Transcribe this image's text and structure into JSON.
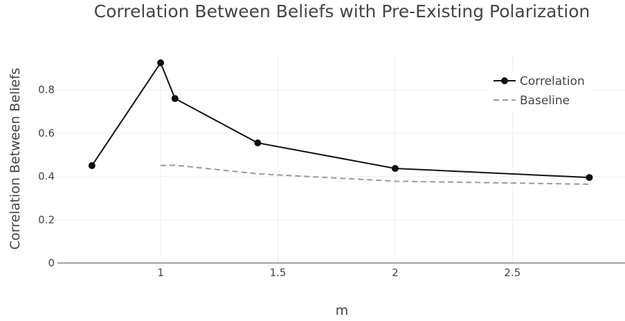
{
  "chart_data": {
    "type": "line",
    "title": "Correlation Between Beliefs with Pre-Existing Polarization",
    "xlabel": "m",
    "ylabel": "Correlation Between Beliefs",
    "xlim": [
      0.56,
      2.98
    ],
    "ylim": [
      0,
      0.96
    ],
    "x_ticks": [
      1,
      1.5,
      2,
      2.5
    ],
    "x_tick_labels": [
      "1",
      "1.5",
      "2",
      "2.5"
    ],
    "y_ticks": [
      0,
      0.2,
      0.4,
      0.6,
      0.8
    ],
    "y_tick_labels": [
      "0",
      "0.2",
      "0.4",
      "0.6",
      "0.8"
    ],
    "grid": true,
    "legend_position": "top-right",
    "series": [
      {
        "name": "Correlation",
        "style": "solid-markers",
        "color": "#111111",
        "x": [
          0.707,
          1.0,
          1.061,
          1.414,
          2.0,
          2.828
        ],
        "y": [
          0.45,
          0.925,
          0.76,
          0.555,
          0.437,
          0.395
        ]
      },
      {
        "name": "Baseline",
        "style": "dashed",
        "color": "#999999",
        "x": [
          1.0,
          1.061,
          1.414,
          2.0,
          2.828
        ],
        "y": [
          0.45,
          0.452,
          0.412,
          0.378,
          0.364
        ]
      }
    ]
  }
}
